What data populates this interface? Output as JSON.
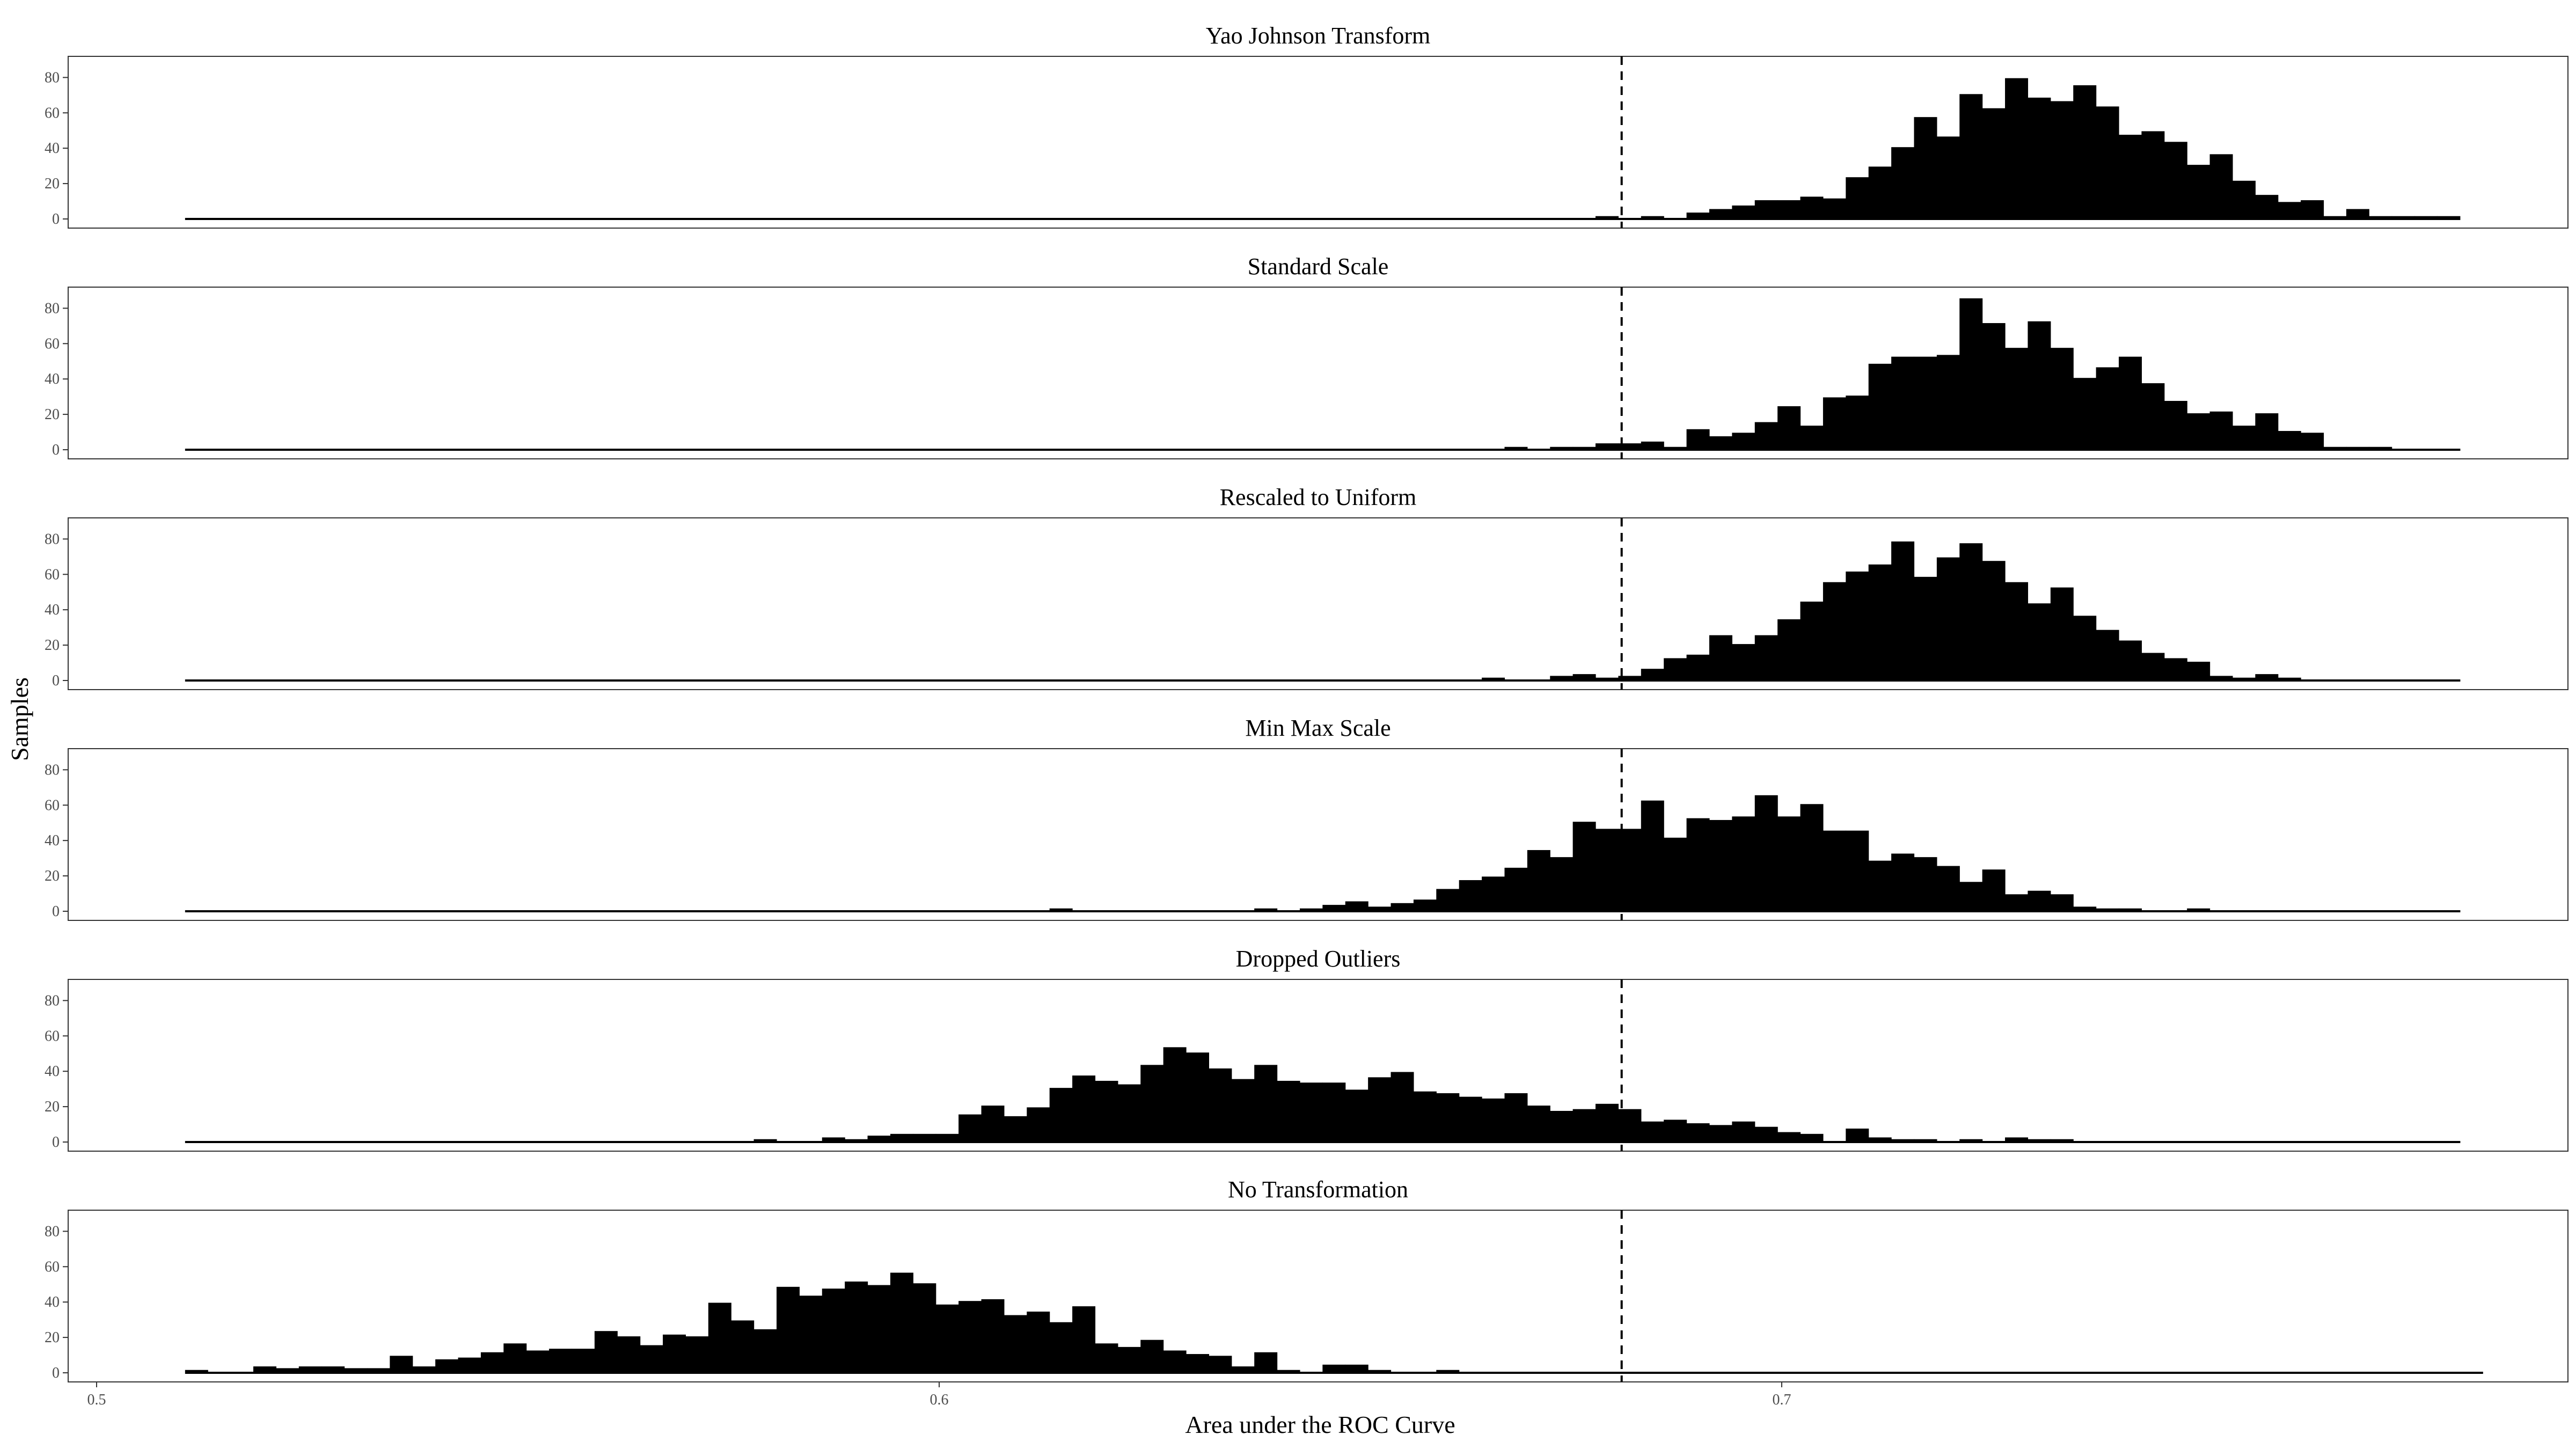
{
  "chart_data": {
    "type": "bar",
    "xlabel": "Area under the ROC Curve",
    "ylabel": "Samples",
    "xlim": [
      0.5,
      0.795
    ],
    "ylim": [
      0,
      88
    ],
    "x_ticks": [
      0.5,
      0.6,
      0.7
    ],
    "x_tick_labels": [
      "0.5",
      "0.6",
      "0.7"
    ],
    "y_ticks": [
      0,
      20,
      40,
      60,
      80
    ],
    "y_tick_labels": [
      "0",
      "20",
      "40",
      "60",
      "80"
    ],
    "reference_line": {
      "x": 0.681,
      "style": "dashed"
    },
    "bin_start": 0.5105,
    "bin_width": 0.0027,
    "grid": false,
    "panels": [
      {
        "title": "Yao Johnson Transform",
        "values": [
          0,
          0,
          0,
          0,
          0,
          0,
          0,
          0,
          0,
          0,
          0,
          0,
          0,
          0,
          0,
          0,
          0,
          0,
          0,
          0,
          0,
          0,
          0,
          0,
          0,
          0,
          0,
          0,
          0,
          0,
          0,
          0,
          0,
          0,
          0,
          0,
          0,
          0,
          0,
          0,
          0,
          0,
          0,
          0,
          0,
          0,
          0,
          0,
          0,
          0,
          0,
          0,
          0,
          0,
          0,
          0,
          0,
          0,
          0,
          0,
          0,
          0,
          1,
          0,
          1,
          0,
          3,
          5,
          7,
          10,
          10,
          12,
          11,
          23,
          29,
          40,
          57,
          46,
          70,
          62,
          79,
          68,
          66,
          75,
          63,
          47,
          49,
          43,
          30,
          36,
          21,
          13,
          9,
          10,
          1,
          5,
          1,
          1,
          1,
          1
        ]
      },
      {
        "title": "Standard Scale",
        "values": [
          0,
          0,
          0,
          0,
          0,
          0,
          0,
          0,
          0,
          0,
          0,
          0,
          0,
          0,
          0,
          0,
          0,
          0,
          0,
          0,
          0,
          0,
          0,
          0,
          0,
          0,
          0,
          0,
          0,
          0,
          0,
          0,
          0,
          0,
          0,
          0,
          0,
          0,
          0,
          0,
          0,
          0,
          0,
          0,
          0,
          0,
          0,
          0,
          0,
          0,
          0,
          0,
          0,
          0,
          0,
          0,
          0,
          0,
          1,
          0,
          1,
          1,
          3,
          3,
          4,
          1,
          11,
          7,
          9,
          15,
          24,
          13,
          29,
          30,
          48,
          52,
          52,
          53,
          85,
          71,
          57,
          72,
          57,
          40,
          46,
          52,
          37,
          27,
          20,
          21,
          13,
          20,
          10,
          9,
          1,
          1,
          1,
          0,
          0,
          0
        ]
      },
      {
        "title": "Rescaled to Uniform",
        "values": [
          0,
          0,
          0,
          0,
          0,
          0,
          0,
          0,
          0,
          0,
          0,
          0,
          0,
          0,
          0,
          0,
          0,
          0,
          0,
          0,
          0,
          0,
          0,
          0,
          0,
          0,
          0,
          0,
          0,
          0,
          0,
          0,
          0,
          0,
          0,
          0,
          0,
          0,
          0,
          0,
          0,
          0,
          0,
          0,
          0,
          0,
          0,
          0,
          0,
          0,
          0,
          0,
          0,
          0,
          0,
          0,
          0,
          1,
          0,
          0,
          2,
          3,
          1,
          2,
          6,
          12,
          14,
          25,
          20,
          25,
          34,
          44,
          55,
          61,
          65,
          78,
          58,
          69,
          77,
          67,
          55,
          43,
          52,
          36,
          28,
          22,
          15,
          12,
          10,
          2,
          1,
          3,
          1,
          0,
          0,
          0,
          0,
          0,
          0,
          0
        ]
      },
      {
        "title": "Min Max Scale",
        "values": [
          0,
          0,
          0,
          0,
          0,
          0,
          0,
          0,
          0,
          0,
          0,
          0,
          0,
          0,
          0,
          0,
          0,
          0,
          0,
          0,
          0,
          0,
          0,
          0,
          0,
          0,
          0,
          0,
          0,
          0,
          0,
          0,
          0,
          0,
          0,
          0,
          0,
          0,
          1,
          0,
          0,
          0,
          0,
          0,
          0,
          0,
          0,
          1,
          0,
          1,
          3,
          5,
          2,
          4,
          6,
          12,
          17,
          19,
          24,
          34,
          30,
          50,
          46,
          46,
          62,
          41,
          52,
          51,
          53,
          65,
          53,
          60,
          45,
          45,
          28,
          32,
          30,
          25,
          16,
          23,
          9,
          11,
          9,
          2,
          1,
          1,
          0,
          0,
          1,
          0,
          0,
          0,
          0,
          0,
          0,
          0,
          0,
          0,
          0,
          0
        ]
      },
      {
        "title": "Dropped Outliers",
        "values": [
          0,
          0,
          0,
          0,
          0,
          0,
          0,
          0,
          0,
          0,
          0,
          0,
          0,
          0,
          0,
          0,
          0,
          0,
          0,
          0,
          0,
          0,
          0,
          0,
          0,
          1,
          0,
          0,
          2,
          1,
          3,
          4,
          4,
          4,
          15,
          20,
          14,
          19,
          30,
          37,
          34,
          32,
          43,
          53,
          50,
          41,
          35,
          43,
          34,
          33,
          33,
          29,
          36,
          39,
          28,
          27,
          25,
          24,
          27,
          20,
          17,
          18,
          21,
          18,
          11,
          12,
          10,
          9,
          11,
          8,
          5,
          4,
          0,
          7,
          2,
          1,
          1,
          0,
          1,
          0,
          2,
          1,
          1,
          0,
          0,
          0,
          0,
          0,
          0,
          0,
          0,
          0,
          0,
          0,
          0,
          0,
          0,
          0,
          0,
          0
        ]
      },
      {
        "title": "No Transformation",
        "values": [
          1,
          0,
          0,
          3,
          2,
          3,
          3,
          2,
          2,
          9,
          3,
          7,
          8,
          11,
          16,
          12,
          13,
          13,
          23,
          20,
          15,
          21,
          20,
          39,
          29,
          24,
          48,
          43,
          47,
          51,
          49,
          56,
          50,
          38,
          40,
          41,
          32,
          34,
          28,
          37,
          16,
          14,
          18,
          12,
          10,
          9,
          3,
          11,
          1,
          0,
          4,
          4,
          1,
          0,
          0,
          1,
          0,
          0,
          0,
          0,
          0,
          0,
          0,
          0,
          0,
          0,
          0,
          0,
          0,
          0,
          0,
          0,
          0,
          0,
          0,
          0,
          0,
          0,
          0,
          0,
          0,
          0,
          0,
          0,
          0,
          0,
          0,
          0,
          0,
          0,
          0,
          0,
          0,
          0,
          0,
          0,
          0,
          0,
          0,
          0,
          0
        ]
      }
    ]
  }
}
